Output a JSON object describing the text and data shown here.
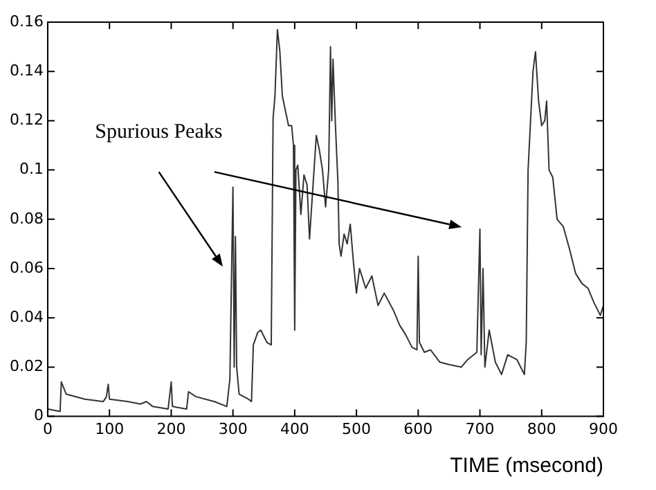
{
  "chart_data": {
    "type": "line",
    "xlabel": "TIME (msecond)",
    "annotations": [
      "Spurious Peaks"
    ],
    "grid": false,
    "legend": false,
    "marker": "none",
    "xlim": [
      0,
      900
    ],
    "xticks": [
      0,
      100,
      200,
      300,
      400,
      500,
      600,
      700,
      800,
      900
    ],
    "ylim": [
      0,
      0.16
    ],
    "yticks": [
      0,
      0.02,
      0.04,
      0.06,
      0.08,
      0.1,
      0.12,
      0.14,
      0.16
    ],
    "series": [
      {
        "color": "#333333",
        "x": [
          0,
          20,
          22,
          30,
          60,
          90,
          95,
          98,
          100,
          130,
          150,
          160,
          170,
          195,
          200,
          202,
          225,
          228,
          240,
          270,
          290,
          295,
          300,
          302,
          304,
          306,
          310,
          325,
          330,
          333,
          340,
          345,
          355,
          362,
          365,
          368,
          372,
          376,
          380,
          390,
          395,
          398,
          400,
          402,
          405,
          410,
          415,
          420,
          424,
          430,
          435,
          440,
          445,
          450,
          455,
          458,
          460,
          462,
          466,
          470,
          472,
          475,
          480,
          485,
          490,
          495,
          500,
          505,
          515,
          525,
          535,
          545,
          560,
          570,
          580,
          590,
          598,
          600,
          602,
          610,
          620,
          635,
          650,
          670,
          680,
          695,
          700,
          702,
          705,
          708,
          715,
          725,
          735,
          745,
          760,
          772,
          775,
          778,
          782,
          786,
          790,
          795,
          800,
          805,
          808,
          812,
          818,
          825,
          835,
          845,
          855,
          865,
          875,
          885,
          895,
          900
        ],
        "values": [
          0.003,
          0.002,
          0.014,
          0.009,
          0.007,
          0.006,
          0.008,
          0.013,
          0.007,
          0.006,
          0.005,
          0.006,
          0.004,
          0.003,
          0.014,
          0.004,
          0.003,
          0.01,
          0.008,
          0.006,
          0.004,
          0.015,
          0.093,
          0.02,
          0.073,
          0.02,
          0.009,
          0.007,
          0.006,
          0.029,
          0.034,
          0.035,
          0.03,
          0.029,
          0.121,
          0.13,
          0.157,
          0.148,
          0.13,
          0.118,
          0.118,
          0.11,
          0.035,
          0.1,
          0.102,
          0.082,
          0.098,
          0.094,
          0.072,
          0.095,
          0.114,
          0.108,
          0.1,
          0.085,
          0.1,
          0.15,
          0.12,
          0.145,
          0.118,
          0.095,
          0.07,
          0.065,
          0.074,
          0.07,
          0.078,
          0.063,
          0.05,
          0.06,
          0.052,
          0.057,
          0.045,
          0.05,
          0.043,
          0.037,
          0.033,
          0.028,
          0.027,
          0.065,
          0.03,
          0.026,
          0.027,
          0.022,
          0.021,
          0.02,
          0.023,
          0.026,
          0.076,
          0.025,
          0.06,
          0.02,
          0.035,
          0.022,
          0.017,
          0.025,
          0.023,
          0.017,
          0.03,
          0.1,
          0.12,
          0.14,
          0.148,
          0.128,
          0.118,
          0.12,
          0.128,
          0.1,
          0.097,
          0.08,
          0.077,
          0.068,
          0.058,
          0.054,
          0.052,
          0.046,
          0.041,
          0.045
        ]
      }
    ]
  }
}
